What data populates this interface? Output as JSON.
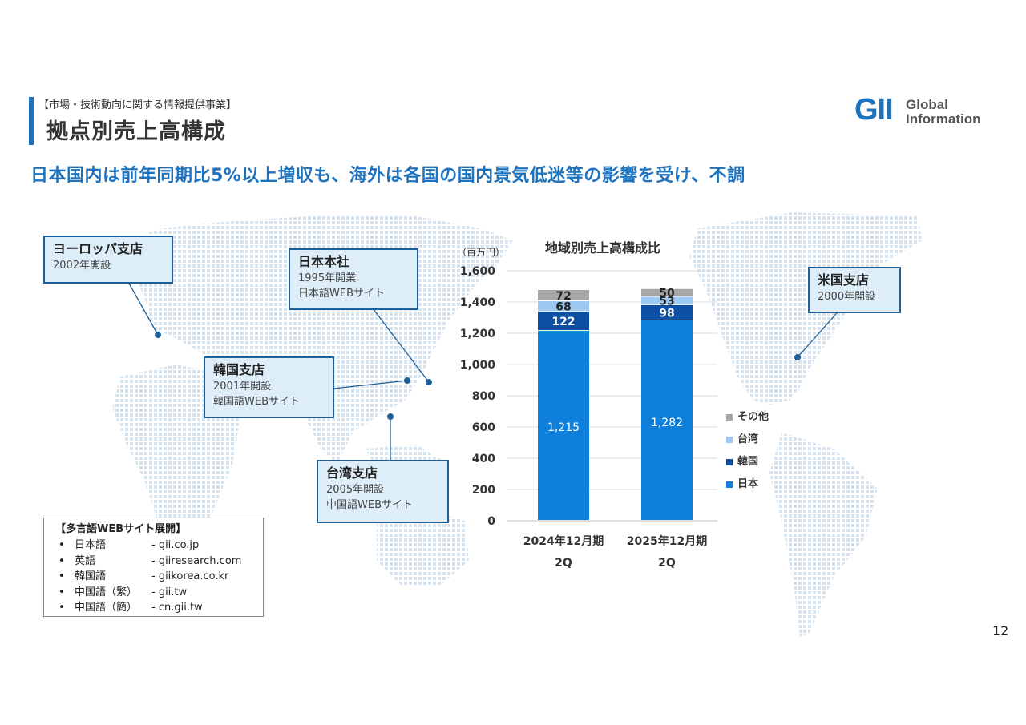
{
  "header": {
    "section_label": "【市場・技術動向に関する情報提供事業】",
    "title": "拠点別売上高構成",
    "headline": "日本国内は前年同期比5%以上増収も、海外は各国の国内景気低迷等の影響を受け、不調"
  },
  "logo": {
    "mark": "GII",
    "line1": "Global",
    "line2": "Information"
  },
  "branches": {
    "europe": {
      "name": "ヨーロッパ支店",
      "line1": "2002年開設"
    },
    "japan": {
      "name": "日本本社",
      "line1": "1995年開業",
      "line2": "日本語WEBサイト"
    },
    "korea": {
      "name": "韓国支店",
      "line1": "2001年開設",
      "line2": "韓国語WEBサイト"
    },
    "taiwan": {
      "name": "台湾支店",
      "line1": "2005年開設",
      "line2": "中国語WEBサイト"
    },
    "usa": {
      "name": "米国支店",
      "line1": "2000年開設"
    }
  },
  "websites": {
    "title": "【多言語WEBサイト展開】",
    "items": [
      {
        "bullet": "•",
        "lang": "日本語",
        "url": "- gii.co.jp"
      },
      {
        "bullet": "•",
        "lang": "英語",
        "url": "- giiresearch.com"
      },
      {
        "bullet": "•",
        "lang": "韓国語",
        "url": "- giikorea.co.kr"
      },
      {
        "bullet": "•",
        "lang": "中国語（繁）",
        "url": "- gii.tw"
      },
      {
        "bullet": "•",
        "lang": "中国語（簡）",
        "url": "- cn.gii.tw"
      }
    ]
  },
  "chart_data": {
    "type": "bar",
    "stacked": true,
    "title": "地域別売上高構成比",
    "unit_label": "（百万円）",
    "categories": [
      "2024年12月期\n2Q",
      "2025年12月期\n2Q"
    ],
    "series": [
      {
        "name": "日本",
        "values": [
          1215,
          1282
        ],
        "color": "#0f7fdc"
      },
      {
        "name": "韓国",
        "values": [
          122,
          98
        ],
        "color": "#0d4fa2"
      },
      {
        "name": "台湾",
        "values": [
          68,
          53
        ],
        "color": "#9ccaf3"
      },
      {
        "name": "その他",
        "values": [
          72,
          50
        ],
        "color": "#a6a6a6"
      }
    ],
    "data_labels": [
      [
        "1,215",
        "122",
        "68",
        "72"
      ],
      [
        "1,282",
        "98",
        "53",
        "50"
      ]
    ],
    "ylim": [
      0,
      1600
    ],
    "yticks": [
      0,
      200,
      400,
      600,
      800,
      1000,
      1200,
      1400,
      1600
    ],
    "ytick_labels": [
      "0",
      "200",
      "400",
      "600",
      "800",
      "1,000",
      "1,200",
      "1,400",
      "1,600"
    ],
    "grid": true,
    "legend": "right"
  },
  "page_number": "12"
}
